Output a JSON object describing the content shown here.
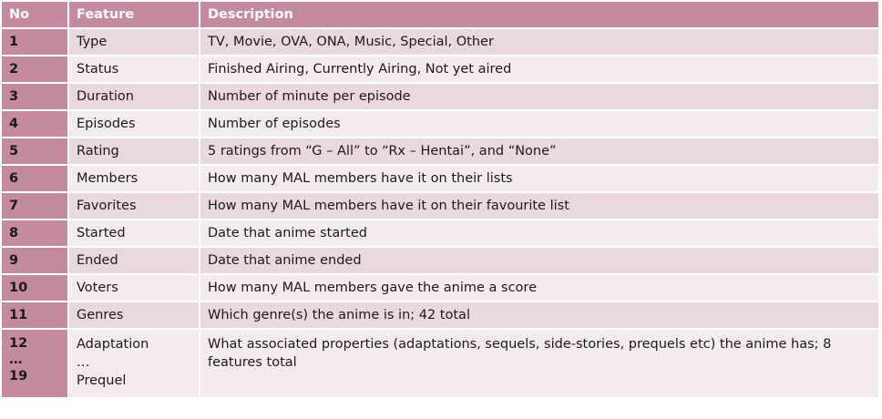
{
  "header": {
    "no": "No",
    "feature": "Feature",
    "description": "Description"
  },
  "rows": [
    {
      "no": "1",
      "feature": "Type",
      "description": "TV, Movie, OVA, ONA, Music, Special, Other"
    },
    {
      "no": "2",
      "feature": "Status",
      "description": "Finished Airing, Currently Airing, Not yet aired"
    },
    {
      "no": "3",
      "feature": "Duration",
      "description": "Number of minute per episode"
    },
    {
      "no": "4",
      "feature": "Episodes",
      "description": "Number of episodes"
    },
    {
      "no": "5",
      "feature": "Rating",
      "description": "5 ratings from “G – All” to “Rx – Hentai”, and “None”"
    },
    {
      "no": "6",
      "feature": "Members",
      "description": "How many MAL members have it on their lists"
    },
    {
      "no": "7",
      "feature": "Favorites",
      "description": "How many MAL members have it on their favourite list"
    },
    {
      "no": "8",
      "feature": "Started",
      "description": "Date that anime started"
    },
    {
      "no": "9",
      "feature": "Ended",
      "description": "Date that anime ended"
    },
    {
      "no": "10",
      "feature": "Voters",
      "description": "How many MAL members gave the anime a score"
    },
    {
      "no": "11",
      "feature": "Genres",
      "description": "Which genre(s) the anime is in; 42 total"
    }
  ],
  "last_row": {
    "no_top": "12",
    "no_mid": "…",
    "no_bottom": "19",
    "feature_top": "Adaptation",
    "feature_mid": "…",
    "feature_bottom": "Prequel",
    "description": "What associated properties (adaptations, sequels, side-stories, prequels etc) the anime has; 8 features total"
  },
  "colors": {
    "header_bg": "#c48a9f",
    "row_odd": "#ead8df",
    "row_even": "#f4ebef"
  }
}
